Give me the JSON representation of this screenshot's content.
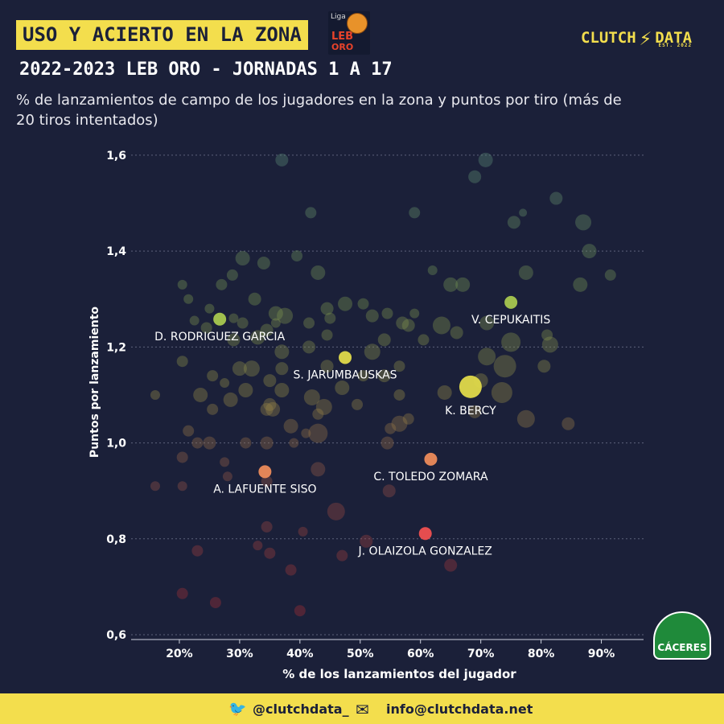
{
  "header": {
    "title": "USO Y ACIERTO EN LA ZONA",
    "liga_logo": {
      "liga": "Liga",
      "leb": "LEB",
      "oro": "ORO"
    },
    "brand": {
      "left": "CLUTCH",
      "right": "DATA",
      "est": "EST. 2022"
    },
    "subtitle": "2022-2023 LEB ORO - JORNADAS 1 A 17",
    "description": "% de lanzamientos de campo de los jugadores en la zona y puntos por tiro (más de 20 tiros intentados)"
  },
  "team_logo": {
    "name": "CÁCERES"
  },
  "footer": {
    "twitter": "@clutchdata_",
    "email": "info@clutchdata.net"
  },
  "colors": {
    "background": "#1b2039",
    "accent": "#f3de4d",
    "highlight_green": "#a8c84f",
    "highlight_yellow": "#e0da4a",
    "highlight_orange": "#ec8b5a",
    "highlight_red": "#f05050"
  },
  "chart_data": {
    "type": "scatter",
    "xlabel": "% de los lanzamientos del jugador",
    "ylabel": "Puntos por lanzamiento",
    "xlim": [
      0.12,
      0.97
    ],
    "ylim": [
      0.59,
      1.63
    ],
    "xticks": [
      0.2,
      0.3,
      0.4,
      0.5,
      0.6,
      0.7,
      0.8,
      0.9
    ],
    "xtick_labels": [
      "20%",
      "30%",
      "40%",
      "50%",
      "60%",
      "70%",
      "80%",
      "90%"
    ],
    "yticks": [
      0.6,
      0.8,
      1.0,
      1.2,
      1.4,
      1.6
    ],
    "ytick_labels": [
      "0,6",
      "0,8",
      "1,0",
      "1,2",
      "1,4",
      "1,6"
    ],
    "grid": "horizontal dashed",
    "highlighted": [
      {
        "name": "V. CEPUKAITIS",
        "x": 0.75,
        "y": 1.293,
        "color": "#a8c84f",
        "label_pos": "below"
      },
      {
        "name": "D. RODRIGUEZ GARCIA",
        "x": 0.267,
        "y": 1.258,
        "color": "#a8c84f",
        "label_pos": "below"
      },
      {
        "name": "S. JARUMBAUSKAS",
        "x": 0.475,
        "y": 1.178,
        "color": "#e0da4a",
        "label_pos": "below"
      },
      {
        "name": "K. BERCY",
        "x": 0.683,
        "y": 1.117,
        "color": "#e0da4a",
        "label_pos": "below",
        "big": true
      },
      {
        "name": "C. TOLEDO ZOMARA",
        "x": 0.617,
        "y": 0.966,
        "color": "#ec8b5a",
        "label_pos": "below"
      },
      {
        "name": "A. LAFUENTE SISO",
        "x": 0.342,
        "y": 0.94,
        "color": "#ec8b5a",
        "label_pos": "below"
      },
      {
        "name": "J. OLAIZOLA GONZALEZ",
        "x": 0.608,
        "y": 0.811,
        "color": "#f05050",
        "label_pos": "below"
      }
    ],
    "points": [
      [
        0.37,
        1.59,
        8
      ],
      [
        0.708,
        1.59,
        9
      ],
      [
        0.69,
        1.555,
        8
      ],
      [
        0.418,
        1.48,
        7
      ],
      [
        0.59,
        1.48,
        7
      ],
      [
        0.77,
        1.48,
        5
      ],
      [
        0.755,
        1.46,
        8
      ],
      [
        0.825,
        1.51,
        8
      ],
      [
        0.87,
        1.46,
        10
      ],
      [
        0.88,
        1.4,
        9
      ],
      [
        0.305,
        1.385,
        9
      ],
      [
        0.34,
        1.375,
        8
      ],
      [
        0.395,
        1.39,
        7
      ],
      [
        0.43,
        1.355,
        9
      ],
      [
        0.205,
        1.33,
        6
      ],
      [
        0.288,
        1.35,
        7
      ],
      [
        0.27,
        1.33,
        7
      ],
      [
        0.775,
        1.355,
        9
      ],
      [
        0.865,
        1.33,
        9
      ],
      [
        0.915,
        1.35,
        7
      ],
      [
        0.65,
        1.33,
        9
      ],
      [
        0.67,
        1.33,
        9
      ],
      [
        0.62,
        1.36,
        6
      ],
      [
        0.325,
        1.3,
        8
      ],
      [
        0.215,
        1.3,
        6
      ],
      [
        0.25,
        1.28,
        6
      ],
      [
        0.36,
        1.27,
        9
      ],
      [
        0.375,
        1.265,
        10
      ],
      [
        0.445,
        1.28,
        8
      ],
      [
        0.475,
        1.29,
        9
      ],
      [
        0.505,
        1.29,
        7
      ],
      [
        0.52,
        1.265,
        8
      ],
      [
        0.545,
        1.27,
        7
      ],
      [
        0.59,
        1.27,
        6
      ],
      [
        0.225,
        1.255,
        6
      ],
      [
        0.245,
        1.24,
        7
      ],
      [
        0.29,
        1.26,
        6
      ],
      [
        0.305,
        1.25,
        7
      ],
      [
        0.345,
        1.235,
        8
      ],
      [
        0.36,
        1.25,
        6
      ],
      [
        0.415,
        1.25,
        7
      ],
      [
        0.45,
        1.26,
        7
      ],
      [
        0.57,
        1.25,
        8
      ],
      [
        0.58,
        1.245,
        8
      ],
      [
        0.635,
        1.245,
        11
      ],
      [
        0.66,
        1.23,
        8
      ],
      [
        0.71,
        1.25,
        9
      ],
      [
        0.81,
        1.225,
        7
      ],
      [
        0.75,
        1.21,
        12
      ],
      [
        0.815,
        1.205,
        10
      ],
      [
        0.445,
        1.225,
        7
      ],
      [
        0.54,
        1.215,
        8
      ],
      [
        0.605,
        1.215,
        7
      ],
      [
        0.29,
        1.215,
        8
      ],
      [
        0.33,
        1.22,
        9
      ],
      [
        0.37,
        1.19,
        9
      ],
      [
        0.415,
        1.2,
        8
      ],
      [
        0.52,
        1.19,
        10
      ],
      [
        0.565,
        1.16,
        7
      ],
      [
        0.71,
        1.18,
        11
      ],
      [
        0.74,
        1.16,
        14
      ],
      [
        0.805,
        1.16,
        8
      ],
      [
        0.205,
        1.17,
        7
      ],
      [
        0.255,
        1.14,
        7
      ],
      [
        0.3,
        1.155,
        9
      ],
      [
        0.32,
        1.155,
        10
      ],
      [
        0.35,
        1.13,
        8
      ],
      [
        0.37,
        1.155,
        8
      ],
      [
        0.445,
        1.16,
        8
      ],
      [
        0.505,
        1.14,
        7
      ],
      [
        0.54,
        1.14,
        8
      ],
      [
        0.275,
        1.125,
        6
      ],
      [
        0.7,
        1.13,
        9
      ],
      [
        0.16,
        1.1,
        6
      ],
      [
        0.235,
        1.1,
        9
      ],
      [
        0.285,
        1.09,
        9
      ],
      [
        0.31,
        1.11,
        9
      ],
      [
        0.35,
        1.08,
        8
      ],
      [
        0.37,
        1.11,
        9
      ],
      [
        0.42,
        1.095,
        10
      ],
      [
        0.44,
        1.075,
        10
      ],
      [
        0.47,
        1.115,
        9
      ],
      [
        0.495,
        1.08,
        7
      ],
      [
        0.565,
        1.1,
        7
      ],
      [
        0.64,
        1.105,
        9
      ],
      [
        0.69,
        1.065,
        8
      ],
      [
        0.735,
        1.105,
        13
      ],
      [
        0.255,
        1.07,
        7
      ],
      [
        0.345,
        1.07,
        8
      ],
      [
        0.355,
        1.07,
        9
      ],
      [
        0.43,
        1.06,
        7
      ],
      [
        0.41,
        1.02,
        6
      ],
      [
        0.43,
        1.02,
        12
      ],
      [
        0.385,
        1.035,
        9
      ],
      [
        0.565,
        1.04,
        10
      ],
      [
        0.58,
        1.05,
        7
      ],
      [
        0.775,
        1.05,
        11
      ],
      [
        0.845,
        1.04,
        8
      ],
      [
        0.215,
        1.025,
        7
      ],
      [
        0.23,
        1.0,
        7
      ],
      [
        0.25,
        1.0,
        8
      ],
      [
        0.31,
        1.0,
        7
      ],
      [
        0.345,
        1.0,
        8
      ],
      [
        0.39,
        1.0,
        6
      ],
      [
        0.545,
        1.0,
        8
      ],
      [
        0.55,
        1.03,
        7
      ],
      [
        0.205,
        0.97,
        7
      ],
      [
        0.275,
        0.96,
        6
      ],
      [
        0.43,
        0.945,
        9
      ],
      [
        0.16,
        0.91,
        6
      ],
      [
        0.205,
        0.91,
        6
      ],
      [
        0.28,
        0.93,
        6
      ],
      [
        0.345,
        0.92,
        7
      ],
      [
        0.548,
        0.9,
        8
      ],
      [
        0.46,
        0.857,
        11
      ],
      [
        0.345,
        0.825,
        7
      ],
      [
        0.405,
        0.815,
        6
      ],
      [
        0.51,
        0.795,
        8
      ],
      [
        0.23,
        0.775,
        7
      ],
      [
        0.33,
        0.786,
        6
      ],
      [
        0.35,
        0.77,
        7
      ],
      [
        0.47,
        0.765,
        7
      ],
      [
        0.385,
        0.735,
        7
      ],
      [
        0.65,
        0.745,
        8
      ],
      [
        0.205,
        0.686,
        7
      ],
      [
        0.26,
        0.667,
        7
      ],
      [
        0.4,
        0.65,
        7
      ]
    ]
  }
}
